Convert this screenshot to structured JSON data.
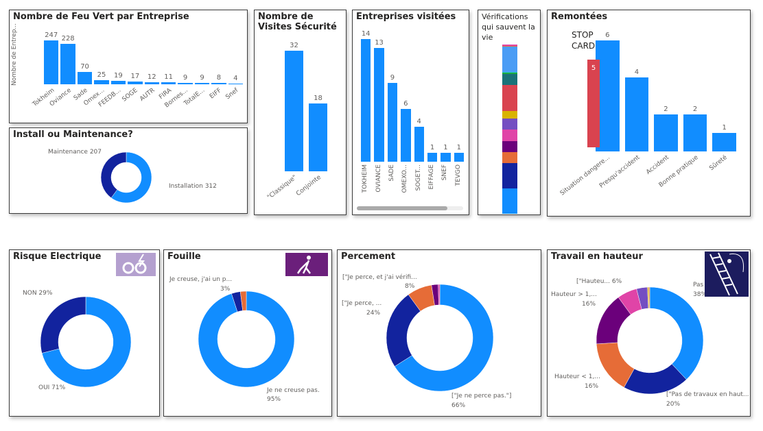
{
  "feu_vert": {
    "title": "Nombre de Feu Vert par Entreprise",
    "ylabel": "Nombre de Entrep...",
    "chart_data": {
      "type": "bar",
      "categories": [
        "Tokheim",
        "Oviance",
        "Sade",
        "Omex...",
        "FEEDB...",
        "SOGE",
        "AUTR",
        "FIRA",
        "Bornes...",
        "TotalE...",
        "EIFF",
        "Snef"
      ],
      "values": [
        247,
        228,
        70,
        25,
        19,
        17,
        12,
        11,
        9,
        9,
        8,
        4
      ]
    }
  },
  "install": {
    "title": "Install ou Maintenance?",
    "chart_data": {
      "type": "pie",
      "slices": [
        {
          "label": "Installation 312",
          "value": 312,
          "color": "#118dff"
        },
        {
          "label": "Maintenance 207",
          "value": 207,
          "color": "#12239e"
        }
      ]
    }
  },
  "visites": {
    "title": "Nombre de Visites Sécurité",
    "chart_data": {
      "type": "bar",
      "categories": [
        "\"Classique\"",
        "Conjointe"
      ],
      "values": [
        32,
        18
      ]
    }
  },
  "entreprises": {
    "title": "Entreprises visitées",
    "chart_data": {
      "type": "bar",
      "categories": [
        "TOKHEIM",
        "OVIANCE",
        "SADE",
        "OMEXO...",
        "SOGET...",
        "EIFFAGE",
        "SNEF",
        "TEVGO"
      ],
      "values": [
        14,
        13,
        9,
        6,
        4,
        1,
        1,
        1
      ]
    }
  },
  "verifications": {
    "title": "Vérifications qui sauvent la vie",
    "chart_data": {
      "type": "bar",
      "stacked": true,
      "segments": [
        {
          "value": 5,
          "color": "#e044a7"
        },
        {
          "value": 5,
          "color": "#e66c37"
        },
        {
          "value": 105,
          "color": "#4a9cf5"
        },
        {
          "value": 5,
          "color": "#29c6d6"
        },
        {
          "value": 5,
          "color": "#1aab40"
        },
        {
          "value": 48,
          "color": "#197278"
        },
        {
          "value": 108,
          "color": "#d9434f"
        },
        {
          "value": 33,
          "color": "#d9b300"
        },
        {
          "value": 47,
          "color": "#744ec2"
        },
        {
          "value": 48,
          "color": "#e044a7"
        },
        {
          "value": 48,
          "color": "#6b007b"
        },
        {
          "value": 48,
          "color": "#e66c37"
        },
        {
          "value": 107,
          "color": "#12239e"
        },
        {
          "value": 107,
          "color": "#118dff"
        }
      ]
    }
  },
  "remontees": {
    "title": "Remontées",
    "stop_card": "STOP CARD",
    "stop_value": "5",
    "chart_data": {
      "type": "bar",
      "categories": [
        "Situation dangere...",
        "Presqu'accident",
        "Accident",
        "Bonne pratique",
        "Sûreté"
      ],
      "values": [
        6,
        4,
        2,
        2,
        1
      ],
      "overlay": {
        "value": 5,
        "color": "#d9434f"
      }
    }
  },
  "risque": {
    "title": "Risque Electrique",
    "chart_data": {
      "type": "pie",
      "slices": [
        {
          "label": "OUI 71%",
          "value": 71,
          "color": "#118dff"
        },
        {
          "label": "NON 29%",
          "value": 29,
          "color": "#12239e"
        }
      ]
    }
  },
  "fouille": {
    "title": "Fouille",
    "chart_data": {
      "type": "pie",
      "slices": [
        {
          "label": "Je ne creuse pas.",
          "pct": "95%",
          "value": 95,
          "color": "#118dff"
        },
        {
          "label": "Je creuse, j'ai un p...",
          "pct": "3%",
          "value": 3,
          "color": "#12239e"
        },
        {
          "label": "",
          "pct": "",
          "value": 2,
          "color": "#e66c37"
        }
      ]
    }
  },
  "percement": {
    "title": "Percement",
    "chart_data": {
      "type": "pie",
      "slices": [
        {
          "label": "[\"Je ne perce pas.\"]",
          "pct": "66%",
          "value": 66,
          "color": "#118dff"
        },
        {
          "label": "[\"Je perce, ...",
          "pct": "24%",
          "value": 24,
          "color": "#12239e"
        },
        {
          "label": "[\"Je perce, et j'ai vérifi...",
          "pct": "8%",
          "value": 7.5,
          "color": "#e66c37"
        },
        {
          "label": "",
          "pct": "",
          "value": 2,
          "color": "#6b007b"
        },
        {
          "label": "",
          "pct": "",
          "value": 0.5,
          "color": "#e044a7"
        }
      ]
    }
  },
  "travail": {
    "title": "Travail en hauteur",
    "chart_data": {
      "type": "pie",
      "slices": [
        {
          "label": "Pas ...",
          "pct": "38%",
          "value": 38,
          "color": "#118dff"
        },
        {
          "label": "[\"Pas de travaux en haut...",
          "pct": "20%",
          "value": 20,
          "color": "#12239e"
        },
        {
          "label": "Hauteur < 1,...",
          "pct": "16%",
          "value": 16,
          "color": "#e66c37"
        },
        {
          "label": "Hauteur > 1,...",
          "pct": "16%",
          "value": 16,
          "color": "#6b007b"
        },
        {
          "label": "[\"Hauteu... 6%",
          "pct": "",
          "value": 6,
          "color": "#e044a7"
        },
        {
          "label": "",
          "pct": "",
          "value": 3.3,
          "color": "#744ec2"
        },
        {
          "label": "",
          "pct": "",
          "value": 0.4,
          "color": "#d9b300"
        },
        {
          "label": "",
          "pct": "",
          "value": 0.3,
          "color": "#e66c37"
        }
      ]
    }
  }
}
